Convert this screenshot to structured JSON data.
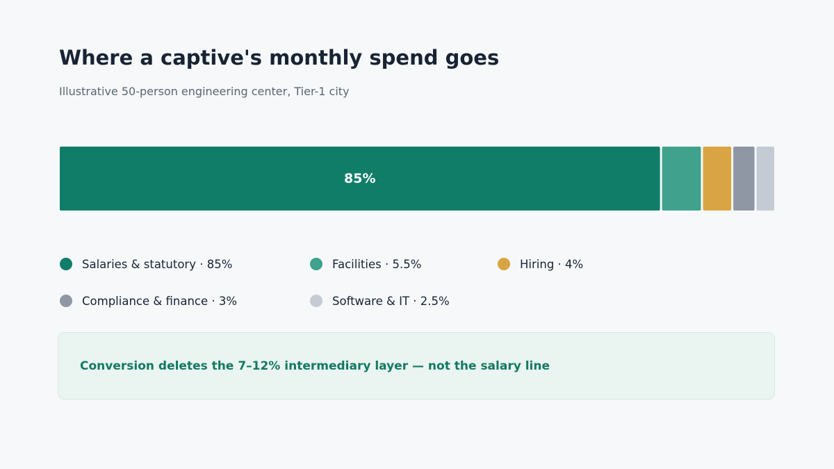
{
  "chart_data": {
    "type": "bar",
    "stacked": true,
    "orientation": "horizontal",
    "title": "Where a captive's monthly spend goes",
    "subtitle": "Illustrative 50-person engineering center, Tier-1 city",
    "segments": [
      {
        "name": "Salaries & statutory",
        "value": 85,
        "value_label": "85%",
        "legend_text": "Salaries & statutory  ·  85%",
        "color": "#107d68",
        "show_inside_label": true
      },
      {
        "name": "Facilities",
        "value": 5.5,
        "value_label": "5.5%",
        "legend_text": "Facilities  ·  5.5%",
        "color": "#40a28d",
        "show_inside_label": false
      },
      {
        "name": "Hiring",
        "value": 4,
        "value_label": "4%",
        "legend_text": "Hiring  ·  4%",
        "color": "#d9a544",
        "show_inside_label": false
      },
      {
        "name": "Compliance & finance",
        "value": 3,
        "value_label": "3%",
        "legend_text": "Compliance & finance  ·  3%",
        "color": "#8f97a5",
        "show_inside_label": false
      },
      {
        "name": "Software & IT",
        "value": 2.5,
        "value_label": "2.5%",
        "legend_text": "Software & IT  ·  2.5%",
        "color": "#c5cbd5",
        "show_inside_label": false
      }
    ],
    "legend_placement": "bottom",
    "grid": false
  },
  "callout": {
    "text": "Conversion deletes the 7–12% intermediary layer — not the salary line"
  }
}
